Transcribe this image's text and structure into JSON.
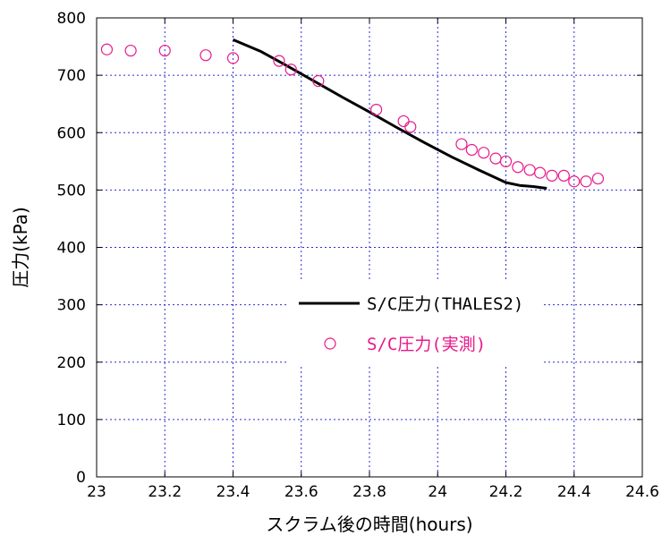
{
  "chart_data": {
    "type": "line",
    "title": "",
    "xlabel": "スクラム後の時間(hours)",
    "ylabel": "圧力(kPa)",
    "xlim": [
      23,
      24.6
    ],
    "ylim": [
      0,
      800
    ],
    "x_ticks": [
      23,
      23.2,
      23.4,
      23.6,
      23.8,
      24,
      24.2,
      24.4,
      24.6
    ],
    "x_tick_labels": [
      "23",
      "23.2",
      "23.4",
      "23.6",
      "23.8",
      "24",
      "24.2",
      "24.4",
      "24.6"
    ],
    "y_ticks": [
      0,
      100,
      200,
      300,
      400,
      500,
      600,
      700,
      800
    ],
    "y_tick_labels": [
      "0",
      "100",
      "200",
      "300",
      "400",
      "500",
      "600",
      "700",
      "800"
    ],
    "grid": true,
    "legend_position": "center-right",
    "series": [
      {
        "name": "S/C圧力(THALES2)",
        "type": "line",
        "color": "#000000",
        "x": [
          23.4,
          23.48,
          23.56,
          23.64,
          23.72,
          23.8,
          23.88,
          23.96,
          24.04,
          24.12,
          24.2,
          24.24,
          24.28,
          24.32
        ],
        "y": [
          762,
          742,
          716,
          689,
          662,
          636,
          609,
          583,
          558,
          535,
          513,
          508,
          506,
          503
        ]
      },
      {
        "name": "S/C圧力(実測)",
        "type": "scatter",
        "color": "#e8198b",
        "x": [
          23.03,
          23.1,
          23.2,
          23.32,
          23.4,
          23.535,
          23.57,
          23.65,
          23.82,
          23.9,
          23.92,
          24.07,
          24.1,
          24.135,
          24.17,
          24.2,
          24.235,
          24.27,
          24.3,
          24.335,
          24.37,
          24.4,
          24.435,
          24.47
        ],
        "y": [
          745,
          743,
          743,
          735,
          730,
          725,
          710,
          690,
          640,
          620,
          610,
          580,
          570,
          565,
          555,
          550,
          540,
          535,
          530,
          525,
          525,
          515,
          515,
          520
        ]
      }
    ]
  }
}
